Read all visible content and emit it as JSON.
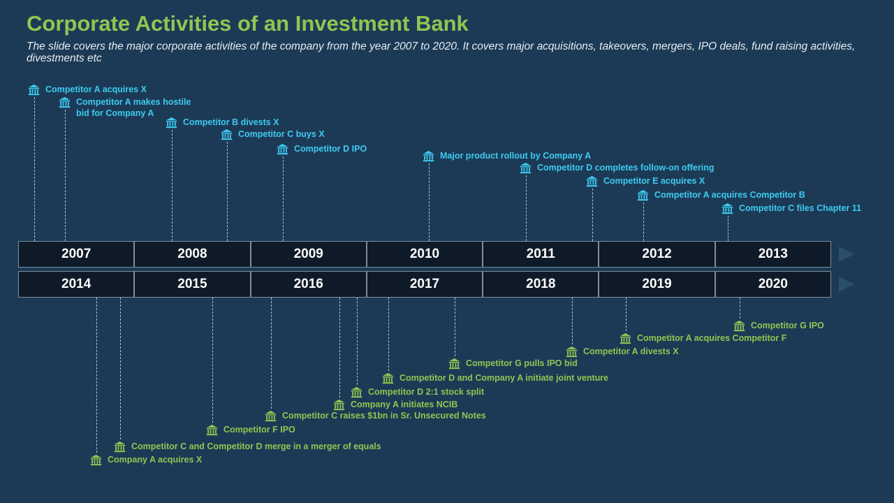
{
  "title": "Corporate Activities of an Investment Bank",
  "subtitle": "The slide covers the major corporate activities of the company from the year 2007 to 2020. It covers major acquisitions, takeovers, mergers, IPO deals, fund raising activities, divestments etc",
  "years_row1": [
    "2007",
    "2008",
    "2009",
    "2010",
    "2011",
    "2012",
    "2013"
  ],
  "years_row2": [
    "2014",
    "2015",
    "2016",
    "2017",
    "2018",
    "2019",
    "2020"
  ],
  "icon": "bank-building-icon",
  "colors": {
    "background": "#1c3a56",
    "title": "#8fc652",
    "top_events": "#3ecbf0",
    "bottom_events": "#8fc652",
    "year_box": "#0e1a27"
  },
  "top_events": [
    {
      "text": "Competitor A acquires X"
    },
    {
      "text": "Competitor A makes hostile\nbid for Company A"
    },
    {
      "text": "Competitor B divests X"
    },
    {
      "text": "Competitor C buys X"
    },
    {
      "text": "Competitor D IPO"
    },
    {
      "text": "Major product rollout by Company A"
    },
    {
      "text": "Competitor D completes follow-on offering"
    },
    {
      "text": "Competitor E acquires X"
    },
    {
      "text": "Competitor A acquires Competitor B"
    },
    {
      "text": "Competitor C files Chapter 11"
    }
  ],
  "bottom_events": [
    {
      "text": "Company A acquires X"
    },
    {
      "text": "Competitor C and Competitor D merge in a merger of equals"
    },
    {
      "text": "Competitor F IPO"
    },
    {
      "text": "Competitor C raises $1bn in Sr. Unsecured Notes"
    },
    {
      "text": "Company A initiates NCIB"
    },
    {
      "text": "Competitor D 2:1 stock split"
    },
    {
      "text": "Competitor D and Company A initiate joint venture"
    },
    {
      "text": "Competitor G pulls IPO bid"
    },
    {
      "text": "Competitor A divests X"
    },
    {
      "text": "Competitor A acquires Competitor F"
    },
    {
      "text": "Competitor G IPO"
    }
  ]
}
